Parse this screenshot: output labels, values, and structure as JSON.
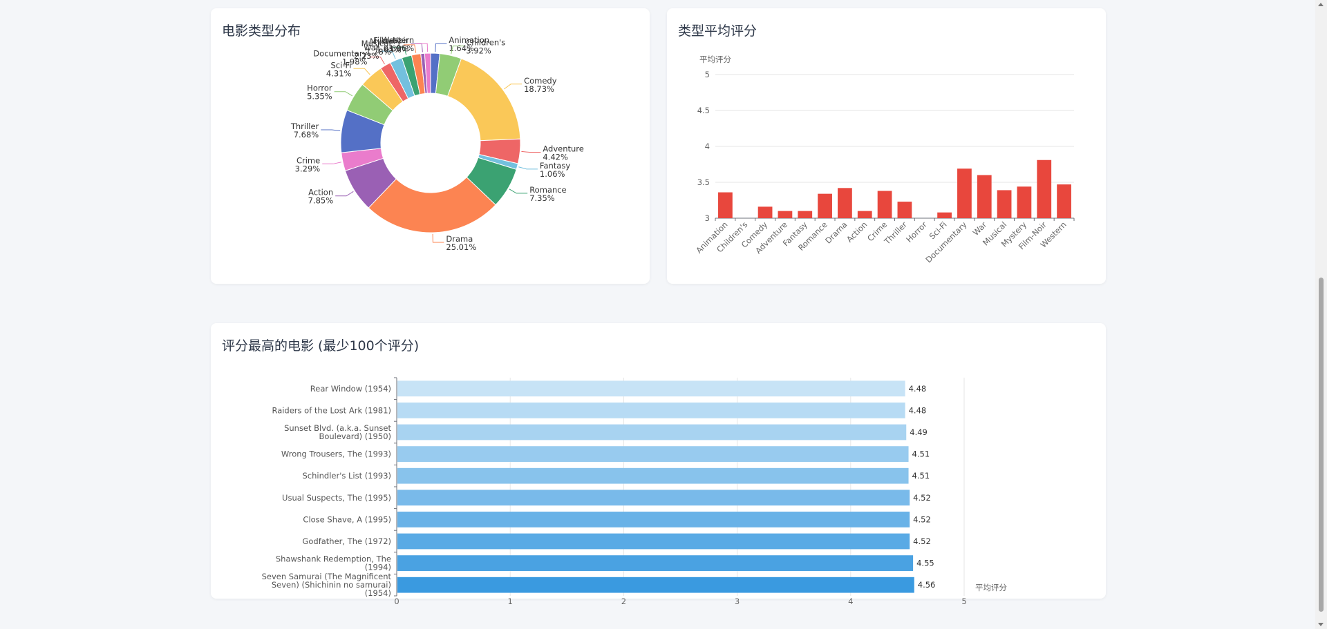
{
  "cards": {
    "genre_distribution_title": "电影类型分布",
    "genre_rating_title": "类型平均评分",
    "top_movies_title": "评分最高的电影 (最少100个评分)"
  },
  "chart_data": [
    {
      "type": "pie",
      "variant": "donut",
      "title": "电影类型分布",
      "slices": [
        {
          "label": "Animation",
          "value": 1.64,
          "display": "1.64%",
          "color": "#5470c6"
        },
        {
          "label": "Children's",
          "value": 3.92,
          "display": "3.92%",
          "color": "#91cc75"
        },
        {
          "label": "Comedy",
          "value": 18.73,
          "display": "18.73%",
          "color": "#fac858"
        },
        {
          "label": "Adventure",
          "value": 4.42,
          "display": "4.42%",
          "color": "#ee6666"
        },
        {
          "label": "Fantasy",
          "value": 1.06,
          "display": "1.06%",
          "color": "#73c0de"
        },
        {
          "label": "Romance",
          "value": 7.35,
          "display": "7.35%",
          "color": "#3ba272"
        },
        {
          "label": "Drama",
          "value": 25.01,
          "display": "25.01%",
          "color": "#fc8452"
        },
        {
          "label": "Action",
          "value": 7.85,
          "display": "7.85%",
          "color": "#9a60b4"
        },
        {
          "label": "Crime",
          "value": 3.29,
          "display": "3.29%",
          "color": "#ea7ccc"
        },
        {
          "label": "Thriller",
          "value": 7.68,
          "display": "7.68%",
          "color": "#5470c6"
        },
        {
          "label": "Horror",
          "value": 5.35,
          "display": "5.35%",
          "color": "#91cc75"
        },
        {
          "label": "Sci-Fi",
          "value": 4.31,
          "display": "4.31%",
          "color": "#fac858"
        },
        {
          "label": "Documentary",
          "value": 1.98,
          "display": "1.98%",
          "color": "#ee6666"
        },
        {
          "label": "War",
          "value": 2.23,
          "display": "2.23%",
          "color": "#73c0de"
        },
        {
          "label": "Musical",
          "value": 1.78,
          "display": "1.78%",
          "color": "#3ba272"
        },
        {
          "label": "Mystery",
          "value": 1.65,
          "display": "1.65%",
          "color": "#fc8452"
        },
        {
          "label": "Film-Noir",
          "value": 0.69,
          "display": "0.69%",
          "color": "#9a60b4"
        },
        {
          "label": "Western",
          "value": 1.06,
          "display": "1.06%",
          "color": "#ea7ccc"
        }
      ]
    },
    {
      "type": "bar",
      "title": "类型平均评分",
      "ylabel": "平均评分",
      "ylim": [
        3,
        5
      ],
      "yticks": [
        "3",
        "3.5",
        "4",
        "4.5",
        "5"
      ],
      "bar_color": "#e8473d",
      "categories": [
        "Animation",
        "Children's",
        "Comedy",
        "Adventure",
        "Fantasy",
        "Romance",
        "Drama",
        "Action",
        "Crime",
        "Thriller",
        "Horror",
        "Sci-Fi",
        "Documentary",
        "War",
        "Musical",
        "Mystery",
        "Film-Noir",
        "Western"
      ],
      "values": [
        3.36,
        3.0,
        3.16,
        3.1,
        3.1,
        3.34,
        3.42,
        3.1,
        3.38,
        3.23,
        2.95,
        3.08,
        3.69,
        3.6,
        3.39,
        3.44,
        3.81,
        3.47
      ]
    },
    {
      "type": "bar",
      "orientation": "horizontal",
      "title": "评分最高的电影 (最少100个评分)",
      "xlabel": "平均评分",
      "xlim": [
        0,
        5
      ],
      "xticks": [
        "0",
        "1",
        "2",
        "3",
        "4",
        "5"
      ],
      "color_light": "#c7e3f6",
      "color_dark": "#3a9ae0",
      "categories": [
        [
          "Rear Window (1954)"
        ],
        [
          "Raiders of the Lost Ark (1981)"
        ],
        [
          "Sunset Blvd. (a.k.a. Sunset",
          "Boulevard) (1950)"
        ],
        [
          "Wrong Trousers, The (1993)"
        ],
        [
          "Schindler's List (1993)"
        ],
        [
          "Usual Suspects, The (1995)"
        ],
        [
          "Close Shave, A (1995)"
        ],
        [
          "Godfather, The (1972)"
        ],
        [
          "Shawshank Redemption, The",
          "(1994)"
        ],
        [
          "Seven Samurai (The Magnificent",
          "Seven) (Shichinin no samurai)",
          "(1954)"
        ]
      ],
      "values": [
        4.48,
        4.48,
        4.49,
        4.51,
        4.51,
        4.52,
        4.52,
        4.52,
        4.55,
        4.56
      ],
      "value_labels": [
        "4.48",
        "4.48",
        "4.49",
        "4.51",
        "4.51",
        "4.52",
        "4.52",
        "4.52",
        "4.55",
        "4.56"
      ]
    }
  ]
}
